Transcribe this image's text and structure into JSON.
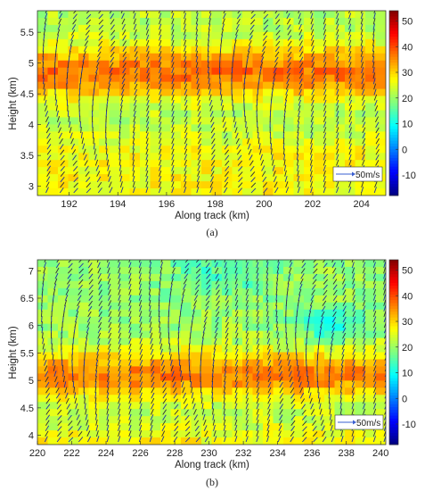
{
  "chart_data": [
    {
      "type": "heatmap",
      "panel_label": "(a)",
      "xlabel": "Along track (km)",
      "ylabel": "Height (km)",
      "xlim": [
        190.7,
        205.0
      ],
      "ylim": [
        2.85,
        5.85
      ],
      "x_ticks": [
        192,
        194,
        196,
        198,
        200,
        202,
        204
      ],
      "y_ticks": [
        3,
        3.5,
        4,
        4.5,
        5,
        5.5
      ],
      "colorbar": {
        "min": -18,
        "max": 54,
        "ticks": [
          -10,
          0,
          10,
          20,
          30,
          40,
          50
        ]
      },
      "background_band": {
        "bottom": 3.5,
        "top": 4.0,
        "value": 27
      },
      "warm_band": {
        "center": 4.85,
        "half_width": 0.4,
        "peak": 37
      },
      "top_value": 22,
      "arrow_legend": "50m/s",
      "profile_spacing_km": 0.52,
      "cold_patches": []
    },
    {
      "type": "heatmap",
      "panel_label": "(b)",
      "xlabel": "Along track (km)",
      "ylabel": "Height (km)",
      "xlim": [
        220,
        240.3
      ],
      "ylim": [
        3.83,
        7.2
      ],
      "x_ticks": [
        220,
        222,
        224,
        226,
        228,
        230,
        232,
        234,
        236,
        238,
        240
      ],
      "y_ticks": [
        4,
        4.5,
        5,
        5.5,
        6,
        6.5,
        7
      ],
      "colorbar": {
        "min": -18,
        "max": 54,
        "ticks": [
          -10,
          0,
          10,
          20,
          30,
          40,
          50
        ]
      },
      "background_band": {
        "bottom": 3.9,
        "top": 4.6,
        "value": 27
      },
      "warm_band": {
        "center": 5.1,
        "half_width": 0.45,
        "peak": 36
      },
      "top_value": 20,
      "arrow_legend": "50m/s",
      "profile_spacing_km": 0.62,
      "cold_patches": [
        {
          "x": 230.5,
          "y": 6.9,
          "rx": 3.0,
          "ry": 0.35,
          "value": 14
        },
        {
          "x": 237.0,
          "y": 6.0,
          "rx": 2.0,
          "ry": 0.3,
          "value": 12
        },
        {
          "x": 223.5,
          "y": 6.5,
          "rx": 2.5,
          "ry": 0.3,
          "value": 20
        }
      ]
    }
  ]
}
